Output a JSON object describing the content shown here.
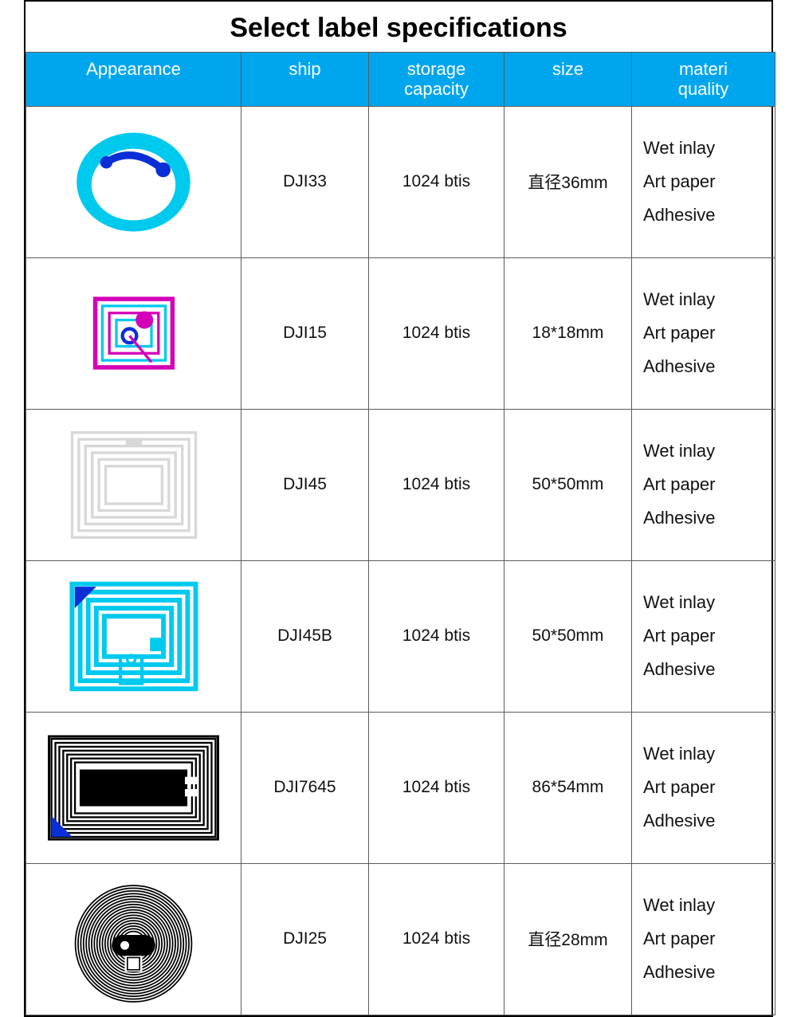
{
  "title": "Select label specifications",
  "header_bg": "#00a6ed",
  "header_fg": "#ffffff",
  "border_color": "#5b5b5b",
  "columns": {
    "appearance": "Appearance",
    "ship": "ship",
    "storage": "storage capacity",
    "size": "size",
    "material": "materi quality"
  },
  "rows": [
    {
      "icon": "round-cyan",
      "ship": "DJI33",
      "storage": "1024 btis",
      "size": "直径36mm",
      "material": [
        "Wet inlay",
        "Art paper",
        "Adhesive"
      ],
      "colors": {
        "primary": "#00c9ee",
        "accent": "#0a2fd6"
      }
    },
    {
      "icon": "square-magenta",
      "ship": "DJI15",
      "storage": "1024 btis",
      "size": "18*18mm",
      "material": [
        "Wet inlay",
        "Art paper",
        "Adhesive"
      ],
      "colors": {
        "primary": "#d400b8",
        "accent": "#0a2fd6",
        "alt": "#00c9ee"
      }
    },
    {
      "icon": "square-gray",
      "ship": "DJI45",
      "storage": "1024 btis",
      "size": "50*50mm",
      "material": [
        "Wet inlay",
        "Art paper",
        "Adhesive"
      ],
      "colors": {
        "primary": "#d8d8d8"
      }
    },
    {
      "icon": "square-cyan",
      "ship": "DJI45B",
      "storage": "1024 btis",
      "size": "50*50mm",
      "material": [
        "Wet inlay",
        "Art paper",
        "Adhesive"
      ],
      "colors": {
        "primary": "#00c9ee",
        "accent": "#0a2fd6"
      }
    },
    {
      "icon": "card-black",
      "ship": "DJI7645",
      "storage": "1024 btis",
      "size": "86*54mm",
      "material": [
        "Wet inlay",
        "Art paper",
        "Adhesive"
      ],
      "colors": {
        "primary": "#000000",
        "accent": "#0a2fd6"
      }
    },
    {
      "icon": "spiral-black",
      "ship": "DJI25",
      "storage": "1024 btis",
      "size": "直径28mm",
      "material": [
        "Wet inlay",
        "Art paper",
        "Adhesive"
      ],
      "colors": {
        "primary": "#000000"
      }
    }
  ]
}
